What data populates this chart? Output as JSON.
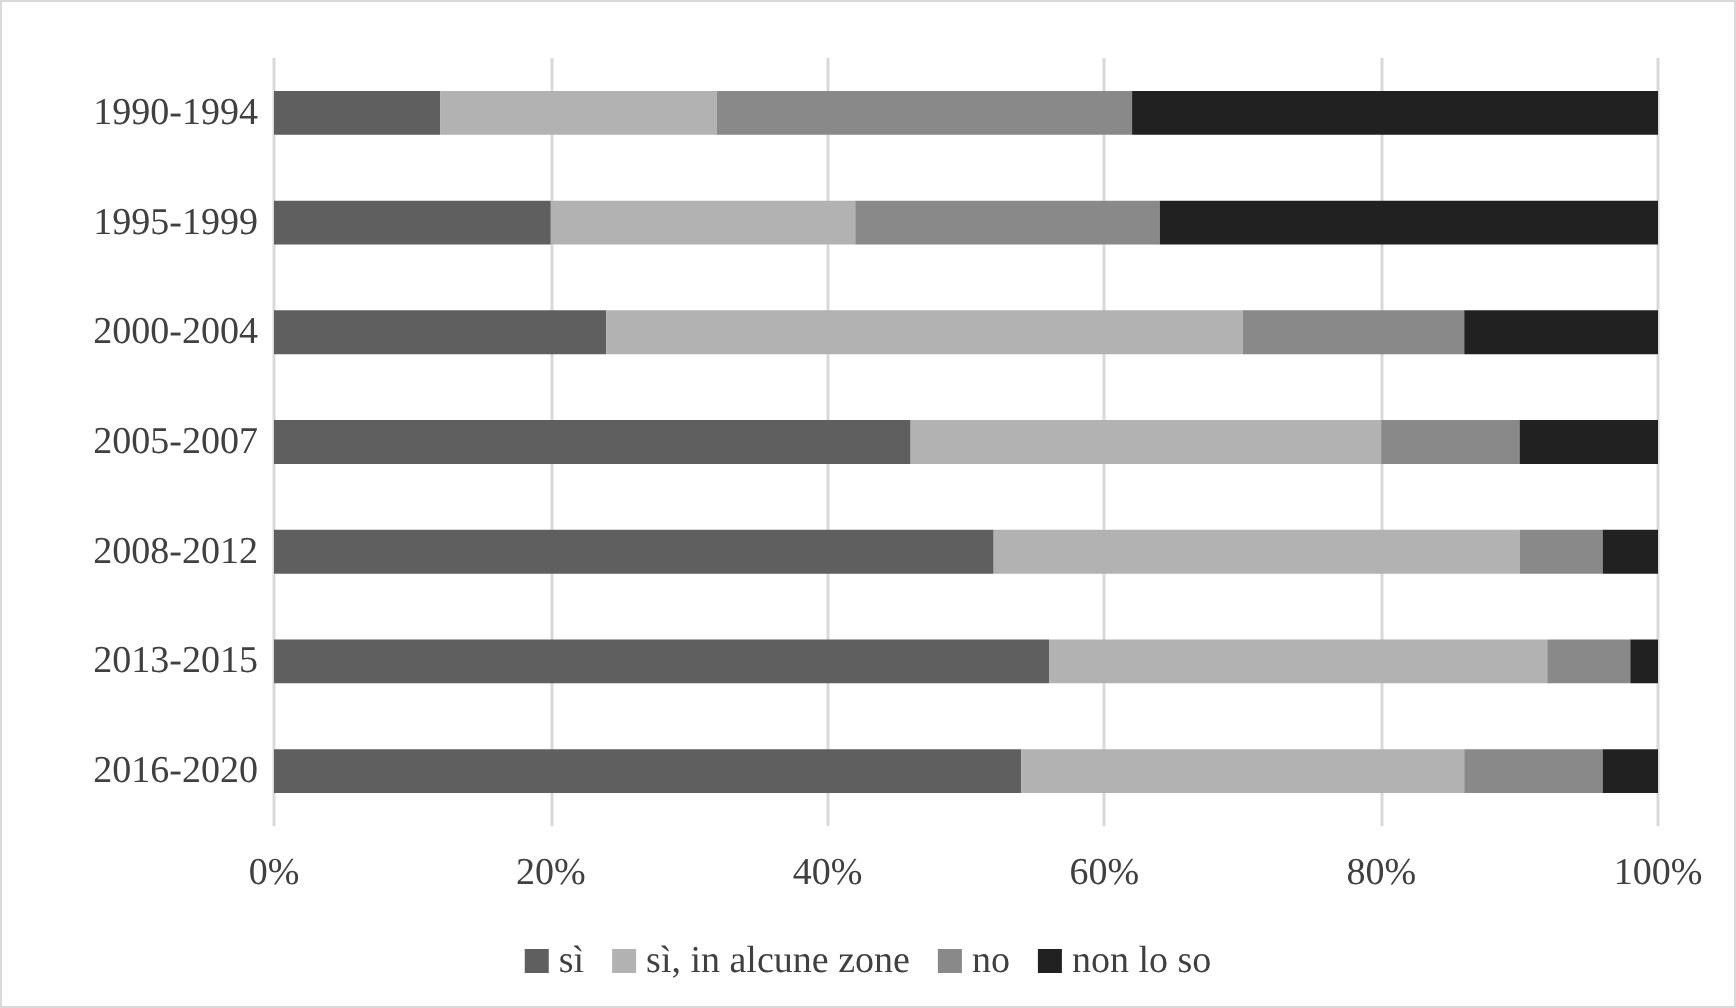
{
  "chart_data": {
    "type": "bar",
    "orientation": "horizontal",
    "stacked": true,
    "categories": [
      "1990-1994",
      "1995-1999",
      "2000-2004",
      "2005-2007",
      "2008-2012",
      "2013-2015",
      "2016-2020"
    ],
    "series": [
      {
        "name": "sì",
        "color": "#5f5f5f",
        "values": [
          12,
          20,
          24,
          46,
          52,
          56,
          54
        ]
      },
      {
        "name": "sì, in alcune zone",
        "color": "#b2b2b2",
        "values": [
          20,
          22,
          46,
          34,
          38,
          36,
          32
        ]
      },
      {
        "name": "no",
        "color": "#898989",
        "values": [
          30,
          22,
          16,
          10,
          6,
          6,
          10
        ]
      },
      {
        "name": "non lo so",
        "color": "#212121",
        "values": [
          38,
          36,
          14,
          10,
          4,
          2,
          4
        ]
      }
    ],
    "xlim": [
      0,
      100
    ],
    "xticks": [
      {
        "value": 0,
        "label": "0%"
      },
      {
        "value": 20,
        "label": "20%"
      },
      {
        "value": 40,
        "label": "40%"
      },
      {
        "value": 60,
        "label": "60%"
      },
      {
        "value": 80,
        "label": "80%"
      },
      {
        "value": 100,
        "label": "100%"
      }
    ],
    "grid": "x",
    "legend": "bottom"
  }
}
